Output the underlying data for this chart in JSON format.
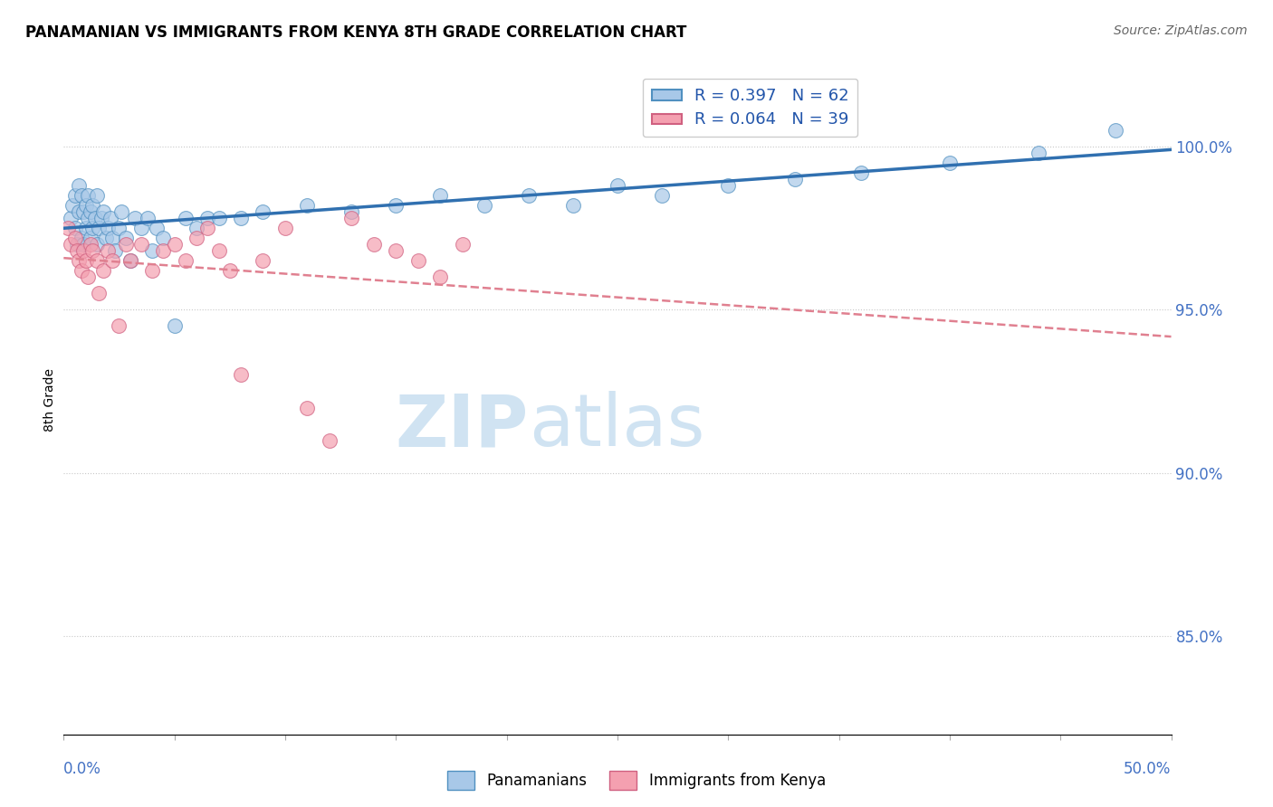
{
  "title": "PANAMANIAN VS IMMIGRANTS FROM KENYA 8TH GRADE CORRELATION CHART",
  "source": "Source: ZipAtlas.com",
  "ylabel": "8th Grade",
  "ylabel_right_ticks": [
    85.0,
    90.0,
    95.0,
    100.0
  ],
  "xmin": 0.0,
  "xmax": 50.0,
  "ymin": 82.0,
  "ymax": 102.5,
  "blue_R": 0.397,
  "blue_N": 62,
  "pink_R": 0.064,
  "pink_N": 39,
  "blue_color": "#a8c8e8",
  "pink_color": "#f4a0b0",
  "blue_edge_color": "#5090c0",
  "pink_edge_color": "#d06080",
  "blue_line_color": "#3070b0",
  "pink_line_color": "#e08090",
  "watermark_color": "#c8dff0",
  "grid_color": "#c8c8c8",
  "blue_scatter_x": [
    0.3,
    0.4,
    0.5,
    0.5,
    0.6,
    0.7,
    0.7,
    0.8,
    0.8,
    0.9,
    0.9,
    1.0,
    1.0,
    1.1,
    1.1,
    1.2,
    1.2,
    1.3,
    1.3,
    1.4,
    1.5,
    1.5,
    1.6,
    1.7,
    1.8,
    1.9,
    2.0,
    2.1,
    2.2,
    2.3,
    2.5,
    2.6,
    2.8,
    3.0,
    3.2,
    3.5,
    3.8,
    4.0,
    4.2,
    4.5,
    5.0,
    5.5,
    6.0,
    6.5,
    7.0,
    8.0,
    9.0,
    11.0,
    13.0,
    15.0,
    17.0,
    19.0,
    21.0,
    23.0,
    25.0,
    27.0,
    30.0,
    33.0,
    36.0,
    40.0,
    44.0,
    47.5
  ],
  "blue_scatter_y": [
    97.8,
    98.2,
    97.5,
    98.5,
    97.0,
    98.0,
    98.8,
    97.2,
    98.5,
    97.0,
    98.0,
    97.5,
    98.2,
    97.8,
    98.5,
    97.2,
    98.0,
    97.5,
    98.2,
    97.8,
    97.0,
    98.5,
    97.5,
    97.8,
    98.0,
    97.2,
    97.5,
    97.8,
    97.2,
    96.8,
    97.5,
    98.0,
    97.2,
    96.5,
    97.8,
    97.5,
    97.8,
    96.8,
    97.5,
    97.2,
    94.5,
    97.8,
    97.5,
    97.8,
    97.8,
    97.8,
    98.0,
    98.2,
    98.0,
    98.2,
    98.5,
    98.2,
    98.5,
    98.2,
    98.8,
    98.5,
    98.8,
    99.0,
    99.2,
    99.5,
    99.8,
    100.5
  ],
  "pink_scatter_x": [
    0.2,
    0.3,
    0.5,
    0.6,
    0.7,
    0.8,
    0.9,
    1.0,
    1.1,
    1.2,
    1.3,
    1.5,
    1.6,
    1.8,
    2.0,
    2.2,
    2.5,
    2.8,
    3.0,
    3.5,
    4.0,
    4.5,
    5.0,
    5.5,
    6.0,
    6.5,
    7.0,
    7.5,
    8.0,
    9.0,
    10.0,
    11.0,
    12.0,
    13.0,
    14.0,
    15.0,
    16.0,
    17.0,
    18.0
  ],
  "pink_scatter_y": [
    97.5,
    97.0,
    97.2,
    96.8,
    96.5,
    96.2,
    96.8,
    96.5,
    96.0,
    97.0,
    96.8,
    96.5,
    95.5,
    96.2,
    96.8,
    96.5,
    94.5,
    97.0,
    96.5,
    97.0,
    96.2,
    96.8,
    97.0,
    96.5,
    97.2,
    97.5,
    96.8,
    96.2,
    93.0,
    96.5,
    97.5,
    92.0,
    91.0,
    97.8,
    97.0,
    96.8,
    96.5,
    96.0,
    97.0
  ]
}
